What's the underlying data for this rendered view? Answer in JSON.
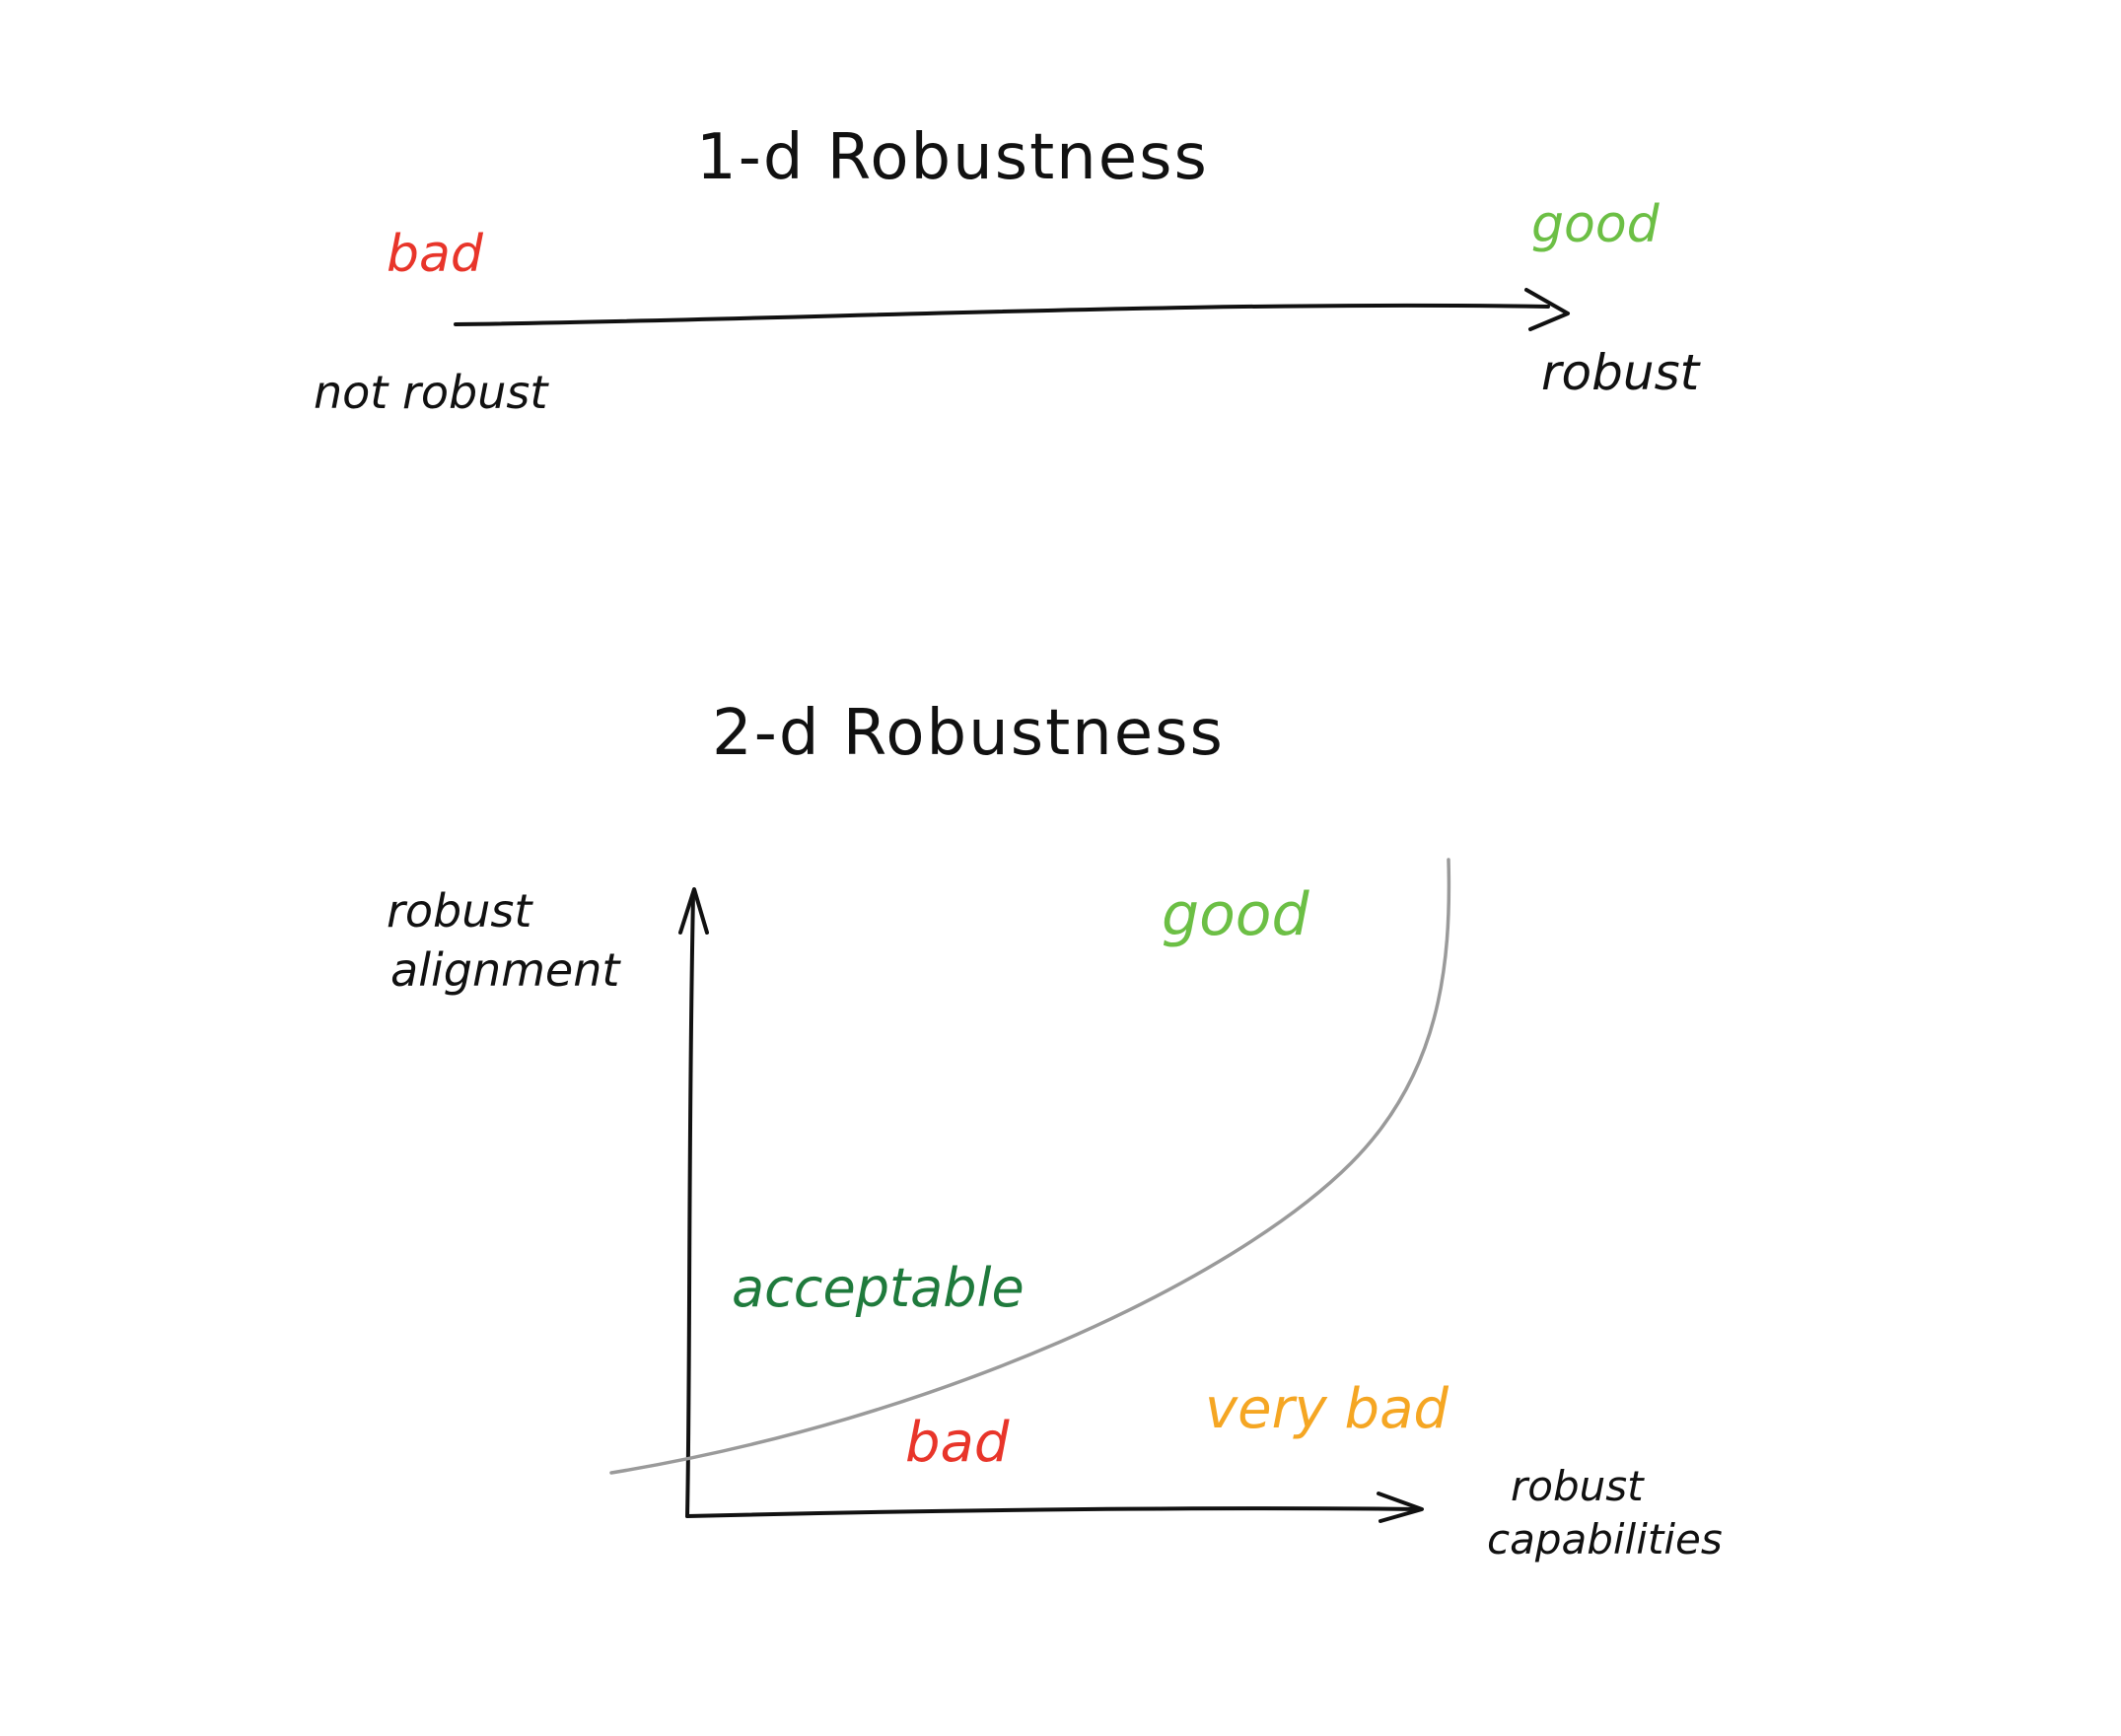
{
  "top_diagram": {
    "title": "1-d Robustness",
    "axis_start_label": "not robust",
    "axis_end_label": "robust",
    "bad_label": "bad",
    "good_label": "good"
  },
  "bottom_diagram": {
    "title": "2-d Robustness",
    "y_axis_label_line1": "robust",
    "y_axis_label_line2": "alignment",
    "x_axis_label_line1": "robust",
    "x_axis_label_line2": "capabilities",
    "regions": {
      "good": "good",
      "acceptable": "acceptable",
      "bad": "bad",
      "very_bad": "very bad"
    }
  },
  "colors": {
    "ink": "#111111",
    "bad": "#e8352a",
    "good": "#6cbf45",
    "acceptable": "#1f7a3c",
    "very_bad": "#f5a623",
    "boundary_curve": "#9a9a9a"
  }
}
